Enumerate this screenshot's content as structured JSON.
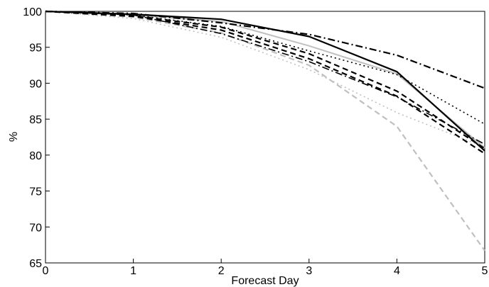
{
  "chart_data": {
    "type": "line",
    "title": "",
    "xlabel": "Forecast Day",
    "ylabel": "%",
    "x": [
      0,
      1,
      2,
      3,
      4,
      5
    ],
    "xlim": [
      0,
      5
    ],
    "ylim": [
      65,
      100
    ],
    "xticks": [
      0,
      1,
      2,
      3,
      4,
      5
    ],
    "yticks": [
      65,
      70,
      75,
      80,
      85,
      90,
      95,
      100
    ],
    "grid": false,
    "legend": "none",
    "series": [
      {
        "values": [
          100,
          99.6,
          98.9,
          96.5,
          91.6,
          80.6
        ],
        "color": "#000000",
        "style": "solid",
        "width": 2.2
      },
      {
        "values": [
          100,
          99.7,
          98.4,
          96.8,
          93.9,
          89.3
        ],
        "color": "#000000",
        "style": "dashdot",
        "width": 2.2
      },
      {
        "values": [
          100,
          99.5,
          97.9,
          94.5,
          91.2,
          84.3
        ],
        "color": "#000000",
        "style": "dotted",
        "width": 1.6
      },
      {
        "values": [
          100,
          99.4,
          97.8,
          94.1,
          88.9,
          80.9
        ],
        "color": "#000000",
        "style": "dashed",
        "width": 2.2
      },
      {
        "values": [
          100,
          99.3,
          97.4,
          93.4,
          88.2,
          80.2
        ],
        "color": "#000000",
        "style": "dashed",
        "width": 2.2
      },
      {
        "values": [
          100,
          99.5,
          96.9,
          93.0,
          88.1,
          81.5
        ],
        "color": "#000000",
        "style": "dashdot",
        "width": 1.6
      },
      {
        "values": [
          100,
          99.5,
          98.6,
          95.2,
          91.3,
          81.0
        ],
        "color": "#c0c0c0",
        "style": "solid",
        "width": 2.0
      },
      {
        "values": [
          100,
          99.2,
          97.0,
          92.5,
          84.0,
          66.7
        ],
        "color": "#c0c0c0",
        "style": "dashed",
        "width": 2.2
      },
      {
        "values": [
          100,
          99.0,
          96.4,
          91.9,
          85.9,
          81.1
        ],
        "color": "#c0c0c0",
        "style": "dotted",
        "width": 1.6
      }
    ]
  }
}
